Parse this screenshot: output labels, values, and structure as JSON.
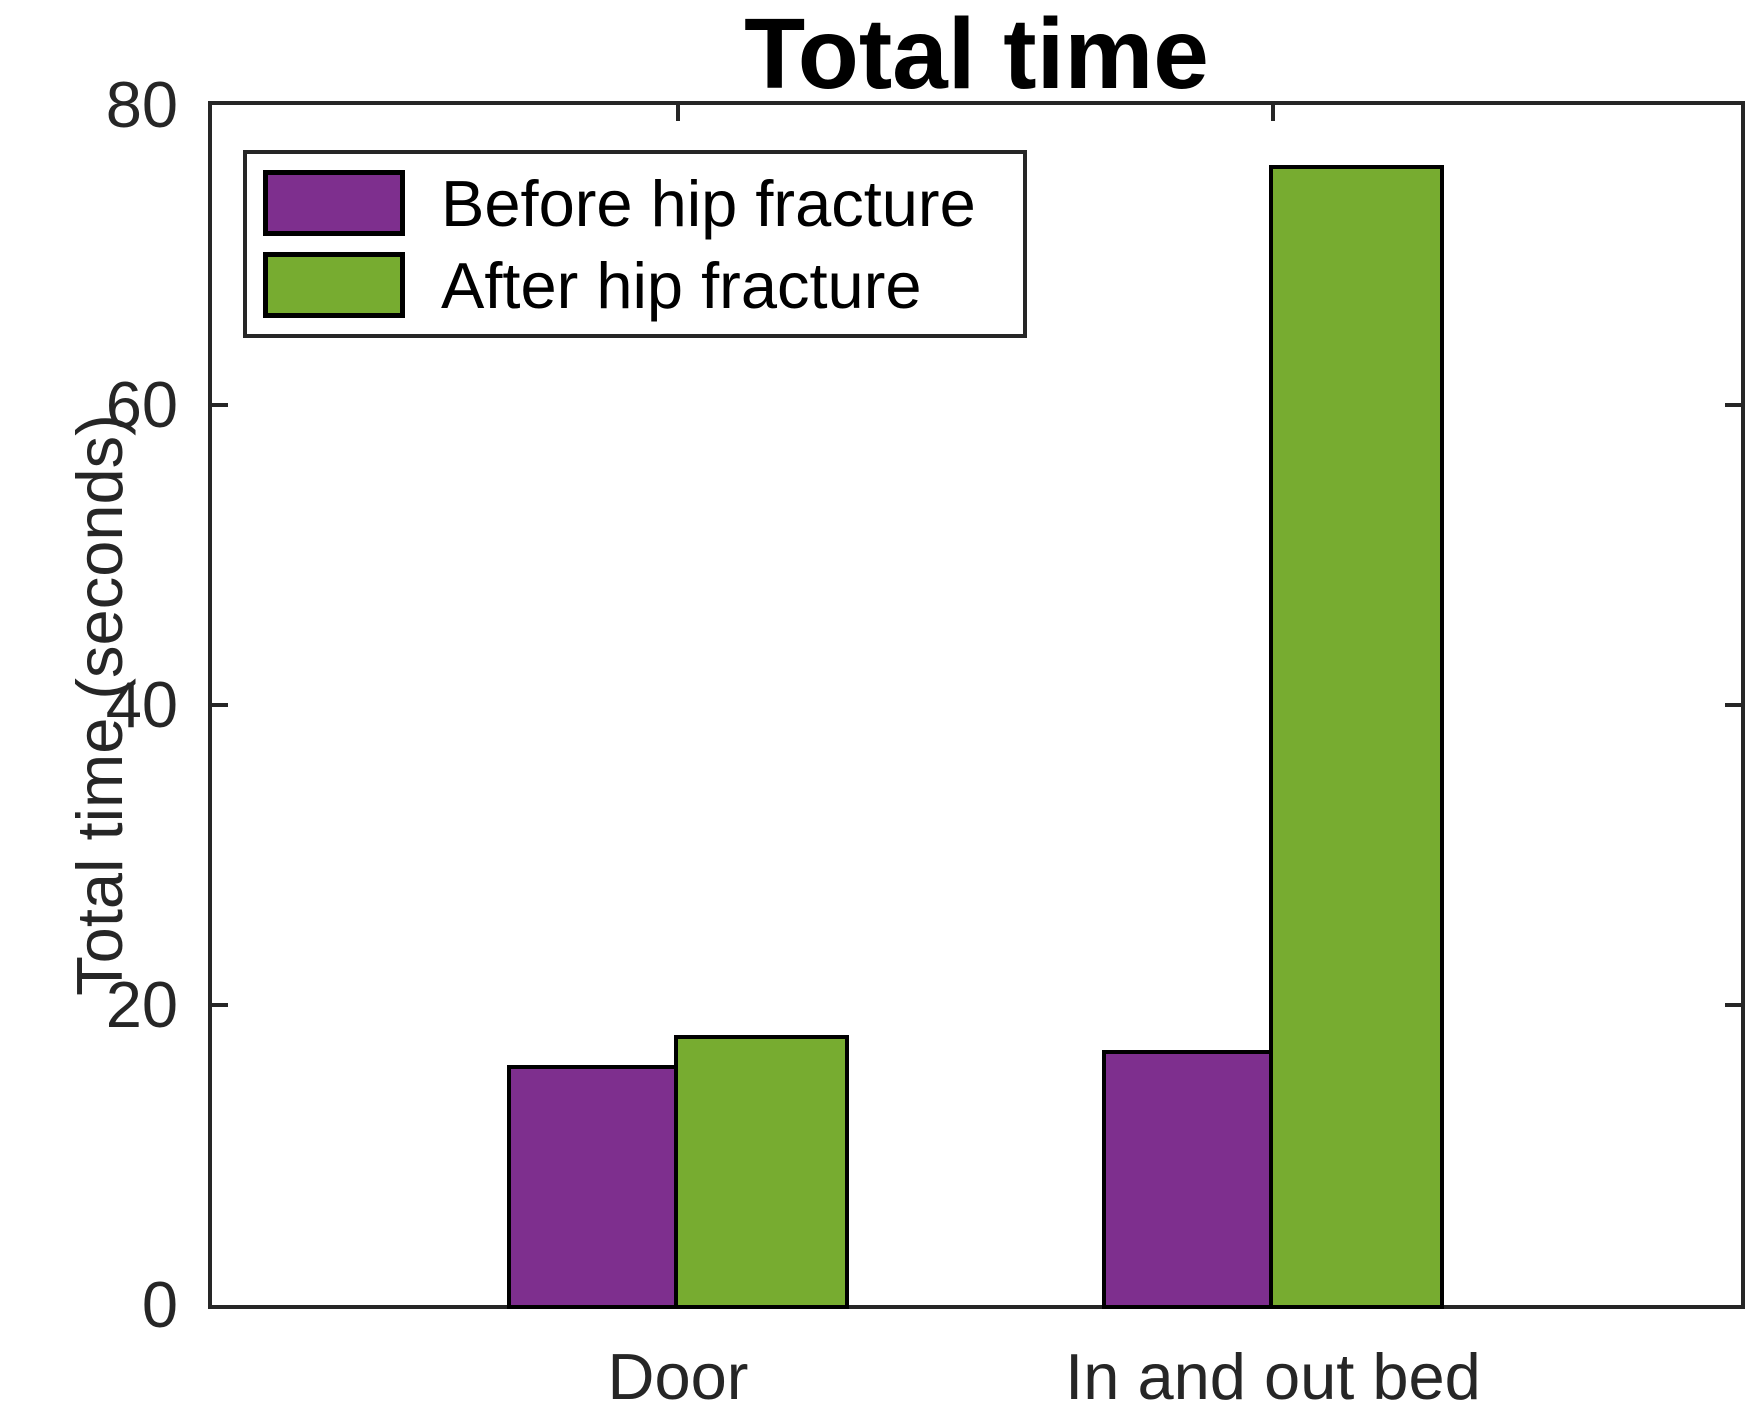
{
  "chart_data": {
    "type": "bar",
    "title": "Total time",
    "ylabel": "Total time (seconds)",
    "xlabel": "",
    "categories": [
      "Door",
      "In and out bed"
    ],
    "series": [
      {
        "name": "Before hip fracture",
        "color": "#7E2F8E",
        "values": [
          16,
          17
        ]
      },
      {
        "name": "After hip fracture",
        "color": "#77AC30",
        "values": [
          18,
          76
        ]
      }
    ],
    "ylim": [
      0,
      80
    ],
    "yticks": [
      0,
      20,
      40,
      60,
      80
    ],
    "grid": false,
    "legend_position": "top-left",
    "bar_edge_color": "#000000",
    "axis_color": "#262626",
    "tick_label_color": "#262626",
    "title_color": "#000000",
    "background_color": "#FFFFFF"
  }
}
